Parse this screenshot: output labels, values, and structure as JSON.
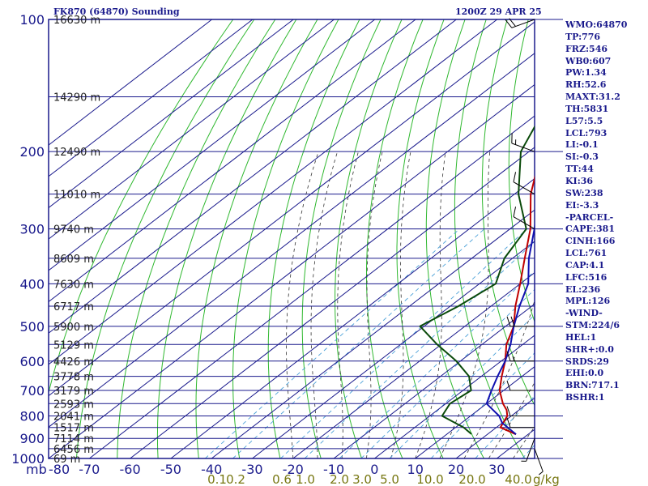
{
  "header": {
    "station": "FK870 (64870) Sounding",
    "time": "1200Z 29 APR 25"
  },
  "indices": [
    "WMO:64870",
    "TP:776",
    "FRZ:546",
    "WB0:607",
    "PW:1.34",
    "RH:52.6",
    "MAXT:31.2",
    "TH:5831",
    "L57:5.5",
    "LCL:793",
    "LI:-0.1",
    "SI:-0.3",
    "TT:44",
    "KI:36",
    "SW:238",
    "EI:-3.3",
    "-PARCEL-",
    "CAPE:381",
    "CINH:166",
    "LCL:761",
    "CAP:4.1",
    "LFC:516",
    "EL:236",
    "MPL:126",
    "-WIND-",
    "STM:224/6",
    "HEL:1",
    "SHR+:0.0",
    "SRDS:29",
    "EHI:0.0",
    "BRN:717.1",
    "BSHR:1"
  ],
  "colors": {
    "grid": "#1a1a8c",
    "isotherm": "#1a1a8c",
    "dry_adiabat": "#2fb82f",
    "moist_adiabat": "#333333",
    "mixing_ratio": "#4aa0d8",
    "temperature": "#c00000",
    "dewpoint": "#0a4a0a",
    "parcel": "#1010b0",
    "wind_barb": "#000000",
    "text": "#1a1a8c",
    "axis_text": "#1a1a8c",
    "mix_text": "#777711"
  },
  "chart_data": {
    "type": "skew-t",
    "pressure_label": "mb",
    "x_unit": "°C",
    "pressure_ticks": [
      100,
      200,
      300,
      400,
      500,
      600,
      700,
      800,
      900,
      1000
    ],
    "temperature_ticks": [
      -80,
      -70,
      -60,
      -50,
      -40,
      -30,
      -20,
      -10,
      0,
      10,
      20,
      30
    ],
    "temperature_range": [
      -80,
      30
    ],
    "pressure_range": [
      1000,
      100
    ],
    "height_labels": [
      {
        "p": 100,
        "label": "16630 m"
      },
      {
        "p": 150,
        "label": "14290 m"
      },
      {
        "p": 200,
        "label": "12490 m"
      },
      {
        "p": 250,
        "label": "11010 m"
      },
      {
        "p": 300,
        "label": "9740 m"
      },
      {
        "p": 350,
        "label": "8609 m"
      },
      {
        "p": 400,
        "label": "7630 m"
      },
      {
        "p": 450,
        "label": "6717 m"
      },
      {
        "p": 500,
        "label": "5900 m"
      },
      {
        "p": 550,
        "label": "5129 m"
      },
      {
        "p": 600,
        "label": "4426 m"
      },
      {
        "p": 650,
        "label": "3778 m"
      },
      {
        "p": 700,
        "label": "3179 m"
      },
      {
        "p": 750,
        "label": "2593 m"
      },
      {
        "p": 800,
        "label": "2041 m"
      },
      {
        "p": 850,
        "label": "1517 m"
      },
      {
        "p": 900,
        "label": "7114 m"
      },
      {
        "p": 950,
        "label": "6456 m"
      },
      {
        "p": 1000,
        "label": "69 m"
      }
    ],
    "mixing_ratio_labels": [
      "0.1",
      "0.2",
      "0.6",
      "1.0",
      "2.0",
      "3.0",
      "5.0",
      "10.0",
      "20.0",
      "40.0"
    ],
    "mixing_ratio_unit": "g/kg",
    "temperature": [
      {
        "p": 100,
        "t": -80
      },
      {
        "p": 150,
        "t": -69
      },
      {
        "p": 200,
        "t": -57
      },
      {
        "p": 250,
        "t": -46
      },
      {
        "p": 300,
        "t": -35
      },
      {
        "p": 350,
        "t": -27
      },
      {
        "p": 400,
        "t": -20
      },
      {
        "p": 450,
        "t": -14
      },
      {
        "p": 500,
        "t": -8
      },
      {
        "p": 550,
        "t": -4
      },
      {
        "p": 600,
        "t": 1
      },
      {
        "p": 650,
        "t": 5
      },
      {
        "p": 700,
        "t": 9
      },
      {
        "p": 750,
        "t": 14
      },
      {
        "p": 776,
        "t": 17
      },
      {
        "p": 800,
        "t": 19
      },
      {
        "p": 850,
        "t": 21
      },
      {
        "p": 881,
        "t": 27
      }
    ],
    "dewpoint": [
      {
        "p": 100,
        "t": -80
      },
      {
        "p": 150,
        "t": -72
      },
      {
        "p": 200,
        "t": -62
      },
      {
        "p": 250,
        "t": -49
      },
      {
        "p": 300,
        "t": -36
      },
      {
        "p": 350,
        "t": -32
      },
      {
        "p": 400,
        "t": -26
      },
      {
        "p": 450,
        "t": -28
      },
      {
        "p": 500,
        "t": -31
      },
      {
        "p": 550,
        "t": -21
      },
      {
        "p": 600,
        "t": -11
      },
      {
        "p": 650,
        "t": -3
      },
      {
        "p": 700,
        "t": 2
      },
      {
        "p": 750,
        "t": 1
      },
      {
        "p": 800,
        "t": 3
      },
      {
        "p": 850,
        "t": 12
      },
      {
        "p": 880,
        "t": 16
      }
    ],
    "parcel": [
      {
        "p": 100,
        "t": -80
      },
      {
        "p": 150,
        "t": -66
      },
      {
        "p": 200,
        "t": -55
      },
      {
        "p": 250,
        "t": -44
      },
      {
        "p": 300,
        "t": -34
      },
      {
        "p": 350,
        "t": -26
      },
      {
        "p": 400,
        "t": -18
      },
      {
        "p": 450,
        "t": -13
      },
      {
        "p": 500,
        "t": -8
      },
      {
        "p": 550,
        "t": -3
      },
      {
        "p": 600,
        "t": 1
      },
      {
        "p": 650,
        "t": 4
      },
      {
        "p": 700,
        "t": 7
      },
      {
        "p": 750,
        "t": 10
      },
      {
        "p": 800,
        "t": 17
      },
      {
        "p": 830,
        "t": 20
      },
      {
        "p": 881,
        "t": 27
      }
    ],
    "wind_barbs": [
      {
        "p": 100,
        "dir": 250,
        "speed": 20
      },
      {
        "p": 200,
        "dir": 290,
        "speed": 15
      },
      {
        "p": 250,
        "dir": 300,
        "speed": 10
      },
      {
        "p": 300,
        "dir": 300,
        "speed": 10
      },
      {
        "p": 500,
        "dir": 270,
        "speed": 20
      },
      {
        "p": 600,
        "dir": 270,
        "speed": 15
      },
      {
        "p": 700,
        "dir": 270,
        "speed": 10
      },
      {
        "p": 800,
        "dir": 270,
        "speed": 10
      },
      {
        "p": 850,
        "dir": 270,
        "speed": 10
      },
      {
        "p": 900,
        "dir": 200,
        "speed": 5
      },
      {
        "p": 950,
        "dir": 160,
        "speed": 5
      }
    ]
  }
}
